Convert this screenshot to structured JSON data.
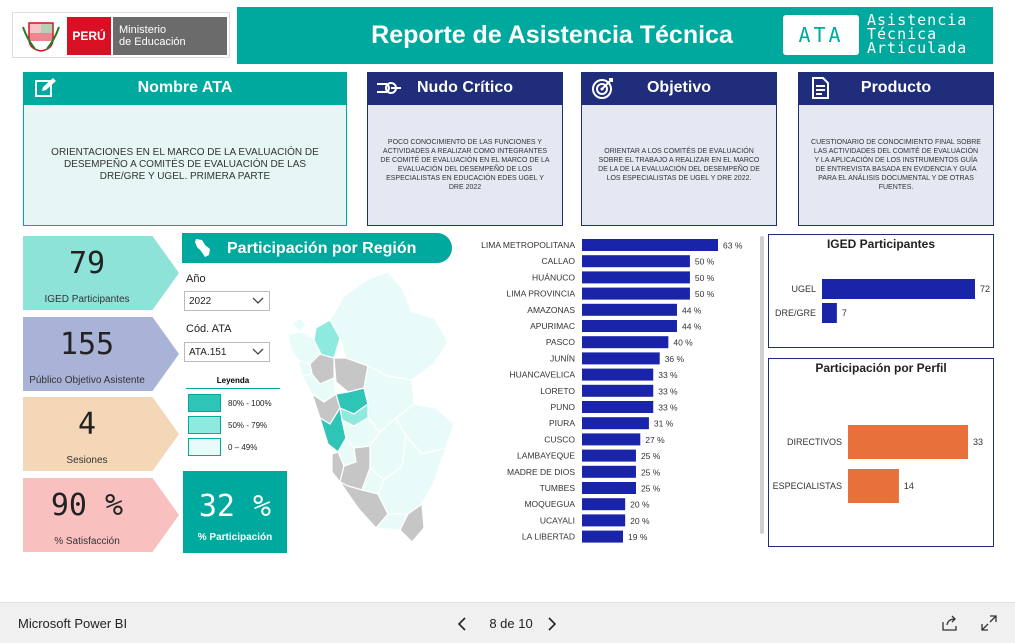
{
  "header": {
    "peru": "PERÚ",
    "ministerio_line1": "Ministerio",
    "ministerio_line2": "de Educación",
    "title": "Reporte de Asistencia Técnica",
    "ata_badge": "ATA",
    "ata_line1": "Asistencia",
    "ata_line2": "Técnica",
    "ata_line3": "Articulada"
  },
  "cards": {
    "nombre": {
      "title": "Nombre ATA",
      "icon": "edit-icon",
      "text": "Orientaciones en el marco de la Evaluación de Desempeño a Comités de Evaluación de las DRE/GRE y UGEL. Primera Parte"
    },
    "nudo": {
      "title": "Nudo Crítico",
      "icon": "knot-icon",
      "text": "Poco conocimiento de las funciones y actividades a realizar como integrantes de Comité de Evaluación en el marco de la evaluación del desempeño de los especialistas en educación EDES UGEL y DRE 2022"
    },
    "objetivo": {
      "title": "Objetivo",
      "icon": "target-icon",
      "text": "Orientar a los comités de evaluación sobre el trabajo a realizar en el marco de la de la evaluación del desempeño de los especialistas de UGEL y DRE 2022."
    },
    "producto": {
      "title": "Producto",
      "icon": "document-icon",
      "text": "Cuestionario de conocimiento final sobre las actividades del comité de evaluación y la aplicación de los instrumentos guía de entrevista basada en evidencia y guía para el análisis documental y de otras fuentes."
    }
  },
  "kpis": {
    "iged": {
      "value": "79",
      "label": "IGED Participantes"
    },
    "publico": {
      "value": "155",
      "label": "Público Objetivo Asistente"
    },
    "sesiones": {
      "value": "4",
      "label": "Sesiones"
    },
    "satisfaccion": {
      "value": "90 %",
      "label": "% Satisfacción"
    }
  },
  "region": {
    "title": "Participación por Región",
    "filters": {
      "year_label": "Año",
      "year_value": "2022",
      "code_label": "Cód. ATA",
      "code_value": "ATA.151"
    },
    "legend": {
      "title": "Leyenda",
      "items": [
        {
          "label": "80% - 100%",
          "color": "#2ec4b6"
        },
        {
          "label": "50% - 79%",
          "color": "#8ee9df"
        },
        {
          "label": "0 – 49%",
          "color": "#e9fbf9"
        }
      ]
    },
    "participation": {
      "value": "32 %",
      "label": "% Participación"
    }
  },
  "colors": {
    "teal": "#00a99d",
    "navy": "#1f2d7a",
    "bar_blue": "#1a24a8",
    "bar_orange": "#e8703a"
  },
  "chart_data": [
    {
      "type": "bar",
      "orientation": "horizontal",
      "categories": [
        "LIMA METROPOLITANA",
        "CALLAO",
        "HUÁNUCO",
        "LIMA PROVINCIA",
        "AMAZONAS",
        "APURIMAC",
        "PASCO",
        "JUNÍN",
        "HUANCAVELICA",
        "LORETO",
        "PUNO",
        "PIURA",
        "CUSCO",
        "LAMBAYEQUE",
        "MADRE DE DIOS",
        "TUMBES",
        "MOQUEGUA",
        "UCAYALI",
        "LA LIBERTAD"
      ],
      "values": [
        63,
        50,
        50,
        50,
        44,
        44,
        40,
        36,
        33,
        33,
        33,
        31,
        27,
        25,
        25,
        25,
        20,
        20,
        19
      ],
      "value_suffix": " %"
    },
    {
      "type": "bar",
      "orientation": "horizontal",
      "title": "IGED Participantes",
      "categories": [
        "UGEL",
        "DRE/GRE"
      ],
      "values": [
        72,
        7
      ]
    },
    {
      "type": "bar",
      "orientation": "horizontal",
      "title": "Participación por Perfil",
      "categories": [
        "DIRECTIVOS",
        "ESPECIALISTAS"
      ],
      "values": [
        33,
        14
      ]
    }
  ],
  "footer": {
    "app": "Microsoft Power BI",
    "page": "8 de 10"
  }
}
